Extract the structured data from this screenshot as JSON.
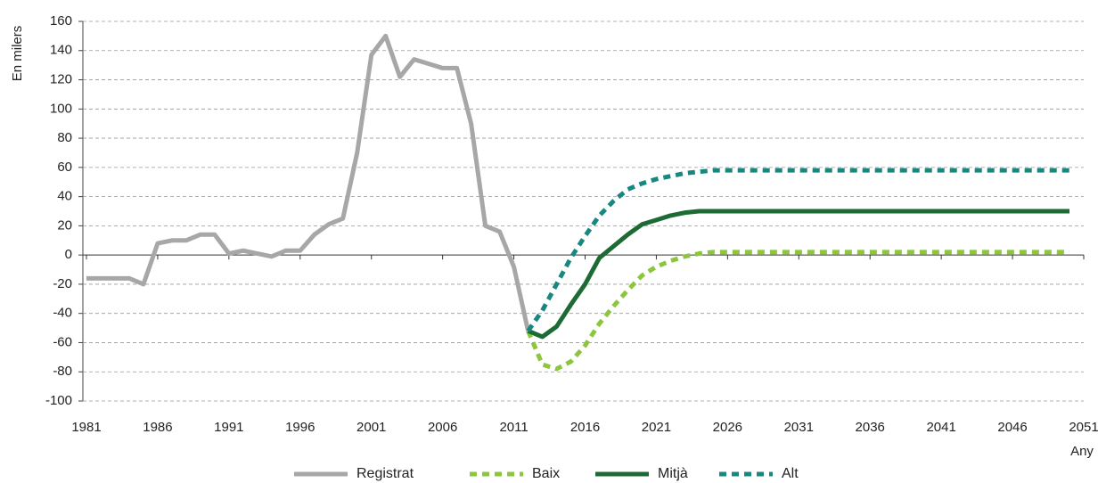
{
  "chart_data": {
    "type": "line",
    "y_label": "En milers",
    "x_label": "Any",
    "xlim": [
      1981,
      2051
    ],
    "xticks": [
      1981,
      1986,
      1991,
      1996,
      2001,
      2006,
      2011,
      2016,
      2021,
      2026,
      2031,
      2036,
      2041,
      2046,
      2051
    ],
    "ylim": [
      -100,
      160
    ],
    "yticks": [
      -100,
      -80,
      -60,
      -40,
      -20,
      0,
      20,
      40,
      60,
      80,
      100,
      120,
      140,
      160
    ],
    "grid": true,
    "legend": "bottom",
    "x": [
      1981,
      1982,
      1983,
      1984,
      1985,
      1986,
      1987,
      1988,
      1989,
      1990,
      1991,
      1992,
      1993,
      1994,
      1995,
      1996,
      1997,
      1998,
      1999,
      2000,
      2001,
      2002,
      2003,
      2004,
      2005,
      2006,
      2007,
      2008,
      2009,
      2010,
      2011,
      2012,
      2013,
      2014,
      2015,
      2016,
      2017,
      2018,
      2019,
      2020,
      2021,
      2022,
      2023,
      2024,
      2025,
      2026,
      2027,
      2028,
      2029,
      2030,
      2031,
      2032,
      2033,
      2034,
      2035,
      2036,
      2037,
      2038,
      2039,
      2040,
      2041,
      2042,
      2043,
      2044,
      2045,
      2046,
      2047,
      2048,
      2049,
      2050
    ],
    "series": [
      {
        "name": "Registrat",
        "color": "#a7a7a9",
        "dashed": false,
        "values": [
          -16,
          -16,
          -16,
          -16,
          -20,
          8,
          10,
          10,
          14,
          14,
          1,
          3,
          1,
          -1,
          3,
          3,
          14,
          21,
          25,
          70,
          137,
          150,
          122,
          134,
          131,
          128,
          128,
          90,
          20,
          16,
          -8,
          -52,
          null,
          null,
          null,
          null,
          null,
          null,
          null,
          null,
          null,
          null,
          null,
          null,
          null,
          null,
          null,
          null,
          null,
          null,
          null,
          null,
          null,
          null,
          null,
          null,
          null,
          null,
          null,
          null,
          null,
          null,
          null,
          null,
          null,
          null,
          null,
          null,
          null,
          null
        ]
      },
      {
        "name": "Baix",
        "color": "#8cc63f",
        "dashed": true,
        "values": [
          null,
          null,
          null,
          null,
          null,
          null,
          null,
          null,
          null,
          null,
          null,
          null,
          null,
          null,
          null,
          null,
          null,
          null,
          null,
          null,
          null,
          null,
          null,
          null,
          null,
          null,
          null,
          null,
          null,
          null,
          null,
          -52,
          -75,
          -78,
          -73,
          -62,
          -47,
          -35,
          -24,
          -14,
          -8,
          -4,
          -1,
          1,
          2,
          2,
          2,
          2,
          2,
          2,
          2,
          2,
          2,
          2,
          2,
          2,
          2,
          2,
          2,
          2,
          2,
          2,
          2,
          2,
          2,
          2,
          2,
          2,
          2,
          2
        ]
      },
      {
        "name": "Mitjà",
        "color": "#1d6b34",
        "dashed": false,
        "values": [
          null,
          null,
          null,
          null,
          null,
          null,
          null,
          null,
          null,
          null,
          null,
          null,
          null,
          null,
          null,
          null,
          null,
          null,
          null,
          null,
          null,
          null,
          null,
          null,
          null,
          null,
          null,
          null,
          null,
          null,
          null,
          -52,
          -56,
          -49,
          -34,
          -20,
          -2,
          6,
          14,
          21,
          24,
          27,
          29,
          30,
          30,
          30,
          30,
          30,
          30,
          30,
          30,
          30,
          30,
          30,
          30,
          30,
          30,
          30,
          30,
          30,
          30,
          30,
          30,
          30,
          30,
          30,
          30,
          30,
          30,
          30
        ]
      },
      {
        "name": "Alt",
        "color": "#17877f",
        "dashed": true,
        "values": [
          null,
          null,
          null,
          null,
          null,
          null,
          null,
          null,
          null,
          null,
          null,
          null,
          null,
          null,
          null,
          null,
          null,
          null,
          null,
          null,
          null,
          null,
          null,
          null,
          null,
          null,
          null,
          null,
          null,
          null,
          null,
          -52,
          -38,
          -20,
          -2,
          13,
          27,
          37,
          45,
          49,
          52,
          54,
          56,
          57,
          58,
          58,
          58,
          58,
          58,
          58,
          58,
          58,
          58,
          58,
          58,
          58,
          58,
          58,
          58,
          58,
          58,
          58,
          58,
          58,
          58,
          58,
          58,
          58,
          58,
          58
        ]
      }
    ]
  }
}
